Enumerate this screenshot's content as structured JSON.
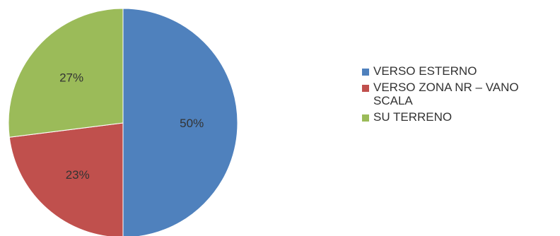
{
  "chart_data": {
    "type": "pie",
    "title": "",
    "legend_position": "right",
    "slices": [
      {
        "name": "VERSO ESTERNO",
        "value": 50,
        "label": "50%",
        "color": "#4f81bd"
      },
      {
        "name": "VERSO ZONA NR – VANO SCALA",
        "value": 23,
        "label": "23%",
        "color": "#c0504d"
      },
      {
        "name": "SU TERRENO",
        "value": 27,
        "label": "27%",
        "color": "#9bbb59"
      }
    ]
  }
}
